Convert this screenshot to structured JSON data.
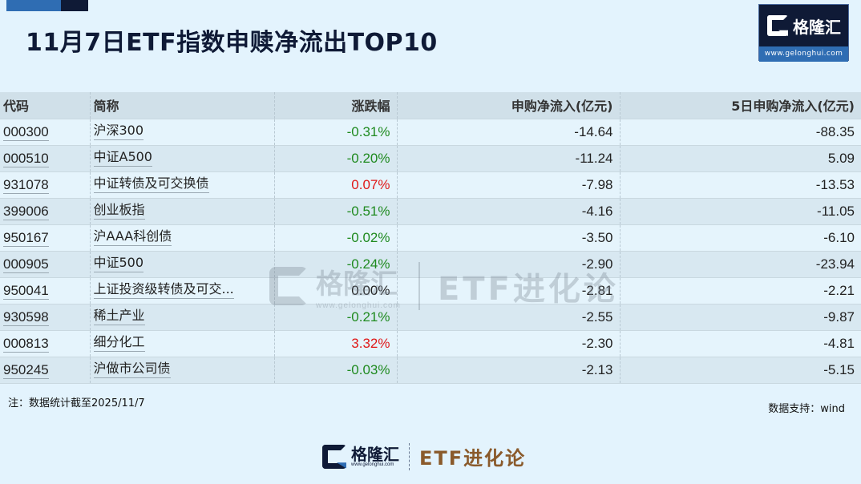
{
  "header": {
    "title": "11月7日ETF指数申赎净流出TOP10",
    "brand_name": "格隆汇",
    "brand_url": "www.gelonghui.com",
    "accent_colors": {
      "blue": "#2f6db3",
      "navy": "#0f1a36"
    }
  },
  "table": {
    "columns": [
      "代码",
      "简称",
      "涨跌幅",
      "申购净流入(亿元)",
      "5日申购净流入(亿元)"
    ],
    "rows": [
      {
        "code": "000300",
        "name": "沪深300",
        "change": "-0.31%",
        "net_inflow": "-14.64",
        "net_inflow_5d": "-88.35"
      },
      {
        "code": "000510",
        "name": "中证A500",
        "change": "-0.20%",
        "net_inflow": "-11.24",
        "net_inflow_5d": "5.09"
      },
      {
        "code": "931078",
        "name": "中证转债及可交换债",
        "change": "0.07%",
        "net_inflow": "-7.98",
        "net_inflow_5d": "-13.53"
      },
      {
        "code": "399006",
        "name": "创业板指",
        "change": "-0.51%",
        "net_inflow": "-4.16",
        "net_inflow_5d": "-11.05"
      },
      {
        "code": "950167",
        "name": "沪AAA科创债",
        "change": "-0.02%",
        "net_inflow": "-3.50",
        "net_inflow_5d": "-6.10"
      },
      {
        "code": "000905",
        "name": "中证500",
        "change": "-0.24%",
        "net_inflow": "-2.90",
        "net_inflow_5d": "-23.94"
      },
      {
        "code": "950041",
        "name": "上证投资级转债及可交...",
        "change": "0.00%",
        "net_inflow": "-2.81",
        "net_inflow_5d": "-2.21"
      },
      {
        "code": "930598",
        "name": "稀土产业",
        "change": "-0.21%",
        "net_inflow": "-2.55",
        "net_inflow_5d": "-9.87"
      },
      {
        "code": "000813",
        "name": "细分化工",
        "change": "3.32%",
        "net_inflow": "-2.30",
        "net_inflow_5d": "-4.81"
      },
      {
        "code": "950245",
        "name": "沪做市公司债",
        "change": "-0.03%",
        "net_inflow": "-2.13",
        "net_inflow_5d": "-5.15"
      }
    ],
    "status_colors": {
      "negative": "#1f8a1f",
      "positive": "#e01818",
      "flat": "#222222"
    }
  },
  "footer": {
    "note": "注：数据统计截至2025/11/7",
    "source": "数据支持：wind",
    "brand_name": "格隆汇",
    "brand_url": "www.gelonghui.com",
    "column_name": "ETF进化论"
  },
  "watermark": {
    "brand_name": "格隆汇",
    "brand_url": "www.gelonghui.com",
    "column_name": "ETF进化论"
  }
}
